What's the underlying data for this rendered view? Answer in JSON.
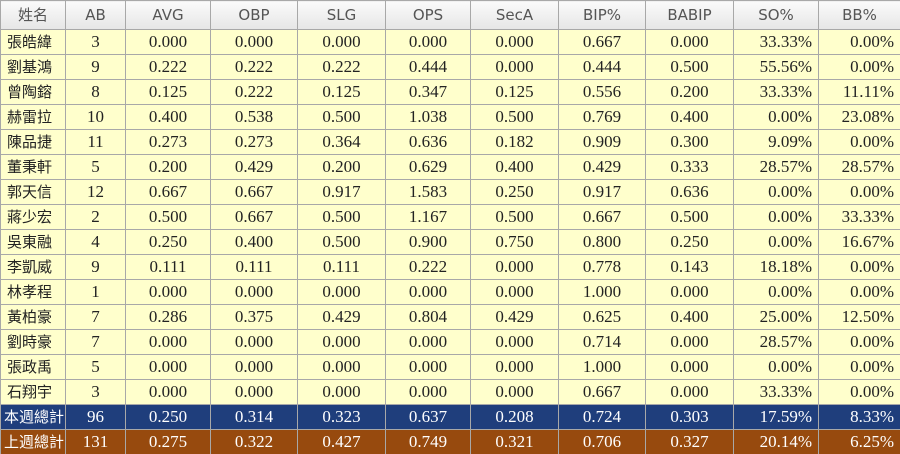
{
  "table": {
    "header": [
      "姓名",
      "AB",
      "AVG",
      "OBP",
      "SLG",
      "OPS",
      "SecA",
      "BIP%",
      "BABIP",
      "SO%",
      "BB%"
    ],
    "rows": [
      [
        "張皓緯",
        "3",
        "0.000",
        "0.000",
        "0.000",
        "0.000",
        "0.000",
        "0.667",
        "0.000",
        "33.33%",
        "0.00%"
      ],
      [
        "劉基鴻",
        "9",
        "0.222",
        "0.222",
        "0.222",
        "0.444",
        "0.000",
        "0.444",
        "0.500",
        "55.56%",
        "0.00%"
      ],
      [
        "曾陶鎔",
        "8",
        "0.125",
        "0.222",
        "0.125",
        "0.347",
        "0.125",
        "0.556",
        "0.200",
        "33.33%",
        "11.11%"
      ],
      [
        "赫雷拉",
        "10",
        "0.400",
        "0.538",
        "0.500",
        "1.038",
        "0.500",
        "0.769",
        "0.400",
        "0.00%",
        "23.08%"
      ],
      [
        "陳品捷",
        "11",
        "0.273",
        "0.273",
        "0.364",
        "0.636",
        "0.182",
        "0.909",
        "0.300",
        "9.09%",
        "0.00%"
      ],
      [
        "董秉軒",
        "5",
        "0.200",
        "0.429",
        "0.200",
        "0.629",
        "0.400",
        "0.429",
        "0.333",
        "28.57%",
        "28.57%"
      ],
      [
        "郭天信",
        "12",
        "0.667",
        "0.667",
        "0.917",
        "1.583",
        "0.250",
        "0.917",
        "0.636",
        "0.00%",
        "0.00%"
      ],
      [
        "蔣少宏",
        "2",
        "0.500",
        "0.667",
        "0.500",
        "1.167",
        "0.500",
        "0.667",
        "0.500",
        "0.00%",
        "33.33%"
      ],
      [
        "吳東融",
        "4",
        "0.250",
        "0.400",
        "0.500",
        "0.900",
        "0.750",
        "0.800",
        "0.250",
        "0.00%",
        "16.67%"
      ],
      [
        "李凱威",
        "9",
        "0.111",
        "0.111",
        "0.111",
        "0.222",
        "0.000",
        "0.778",
        "0.143",
        "18.18%",
        "0.00%"
      ],
      [
        "林孝程",
        "1",
        "0.000",
        "0.000",
        "0.000",
        "0.000",
        "0.000",
        "1.000",
        "0.000",
        "0.00%",
        "0.00%"
      ],
      [
        "黃柏豪",
        "7",
        "0.286",
        "0.375",
        "0.429",
        "0.804",
        "0.429",
        "0.625",
        "0.400",
        "25.00%",
        "12.50%"
      ],
      [
        "劉時豪",
        "7",
        "0.000",
        "0.000",
        "0.000",
        "0.000",
        "0.000",
        "0.714",
        "0.000",
        "28.57%",
        "0.00%"
      ],
      [
        "張政禹",
        "5",
        "0.000",
        "0.000",
        "0.000",
        "0.000",
        "0.000",
        "1.000",
        "0.000",
        "0.00%",
        "0.00%"
      ],
      [
        "石翔宇",
        "3",
        "0.000",
        "0.000",
        "0.000",
        "0.000",
        "0.000",
        "0.667",
        "0.000",
        "33.33%",
        "0.00%"
      ]
    ],
    "totals": [
      [
        "本週總計",
        "96",
        "0.250",
        "0.314",
        "0.323",
        "0.637",
        "0.208",
        "0.724",
        "0.303",
        "17.59%",
        "8.33%"
      ],
      [
        "上週總計",
        "131",
        "0.275",
        "0.322",
        "0.427",
        "0.749",
        "0.321",
        "0.706",
        "0.327",
        "20.14%",
        "6.25%"
      ]
    ]
  }
}
